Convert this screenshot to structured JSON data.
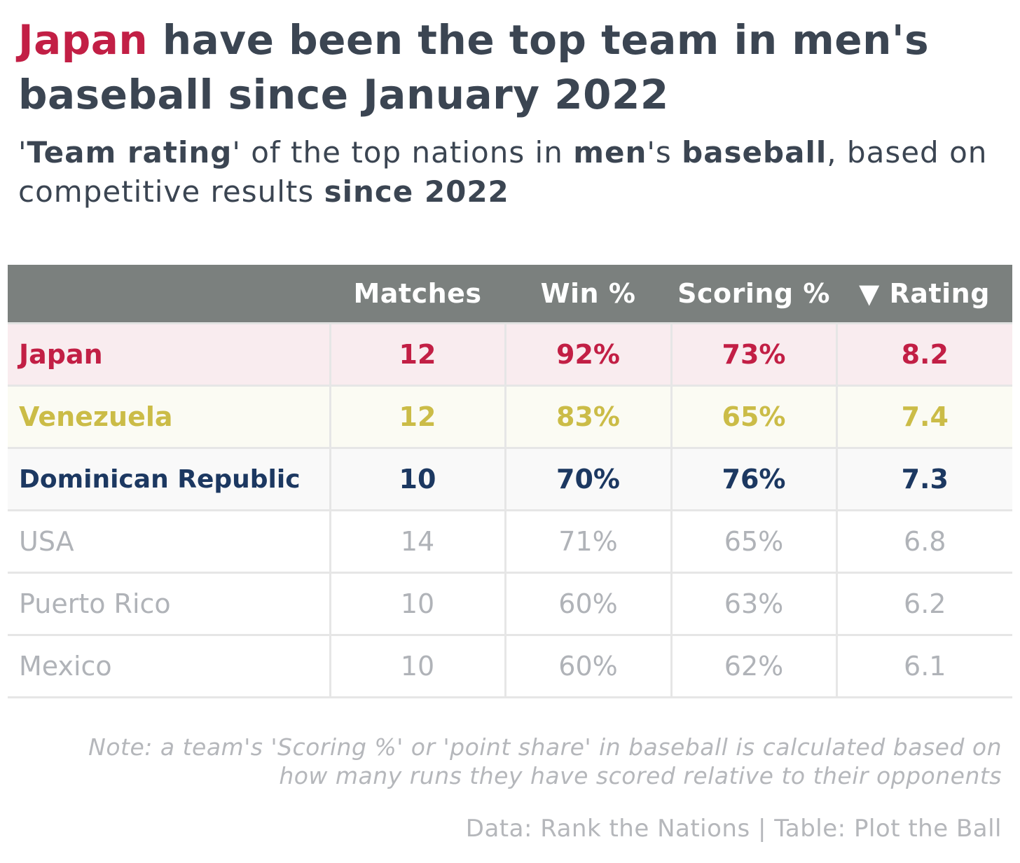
{
  "title": {
    "highlight": "Japan",
    "rest": " have been the top team in men's baseball since January 2022"
  },
  "subtitle": {
    "p1": "'",
    "b1": "Team rating",
    "p2": "' of the top nations in ",
    "b2": "men",
    "p3": "'s ",
    "b3": "baseball",
    "p4": ", based on competitive results ",
    "b4": "since 2022"
  },
  "chart_data": {
    "type": "table",
    "columns": [
      "",
      "Matches",
      "Win %",
      "Scoring %",
      "▼ Rating"
    ],
    "rows": [
      {
        "team": "Japan",
        "matches": "12",
        "win": "92%",
        "scoring": "73%",
        "rating": "8.2"
      },
      {
        "team": "Venezuela",
        "matches": "12",
        "win": "83%",
        "scoring": "65%",
        "rating": "7.4"
      },
      {
        "team": "Dominican Republic",
        "matches": "10",
        "win": "70%",
        "scoring": "76%",
        "rating": "7.3"
      },
      {
        "team": "USA",
        "matches": "14",
        "win": "71%",
        "scoring": "65%",
        "rating": "6.8"
      },
      {
        "team": "Puerto Rico",
        "matches": "10",
        "win": "60%",
        "scoring": "63%",
        "rating": "6.2"
      },
      {
        "team": "Mexico",
        "matches": "10",
        "win": "60%",
        "scoring": "62%",
        "rating": "6.1"
      }
    ],
    "highlight_colors": {
      "Japan": "#c21f45",
      "Venezuela": "#cbbc47",
      "Dominican Republic": "#1c3861",
      "other": "#b0b3b8"
    }
  },
  "note": "Note: a team's 'Scoring %' or 'point share' in baseball is calculated based on how many runs they have scored relative to their opponents",
  "source": "Data: Rank the Nations | Table: Plot the Ball"
}
